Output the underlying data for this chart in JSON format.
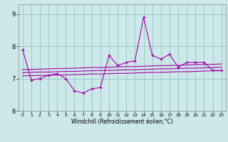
{
  "hours": [
    0,
    1,
    2,
    3,
    4,
    5,
    6,
    7,
    8,
    9,
    10,
    11,
    12,
    13,
    14,
    15,
    16,
    17,
    18,
    19,
    20,
    21,
    22,
    23
  ],
  "line_jagged": [
    7.9,
    6.95,
    7.0,
    7.1,
    7.15,
    7.0,
    6.62,
    6.55,
    6.68,
    6.72,
    7.72,
    7.4,
    7.5,
    7.55,
    8.9,
    7.72,
    7.6,
    7.75,
    7.35,
    7.5,
    7.5,
    7.5,
    7.25,
    7.25
  ],
  "line_smooth1": [
    7.28,
    7.28,
    7.29,
    7.3,
    7.31,
    7.31,
    7.32,
    7.33,
    7.34,
    7.34,
    7.35,
    7.36,
    7.37,
    7.37,
    7.38,
    7.39,
    7.4,
    7.4,
    7.41,
    7.42,
    7.43,
    7.43,
    7.44,
    7.45
  ],
  "line_smooth2": [
    7.18,
    7.19,
    7.2,
    7.2,
    7.21,
    7.22,
    7.22,
    7.23,
    7.24,
    7.25,
    7.25,
    7.26,
    7.27,
    7.27,
    7.28,
    7.29,
    7.3,
    7.3,
    7.31,
    7.32,
    7.32,
    7.33,
    7.34,
    7.35
  ],
  "line_smooth3": [
    7.08,
    7.09,
    7.09,
    7.1,
    7.11,
    7.11,
    7.12,
    7.13,
    7.14,
    7.14,
    7.15,
    7.16,
    7.16,
    7.17,
    7.18,
    7.19,
    7.19,
    7.2,
    7.21,
    7.21,
    7.22,
    7.23,
    7.24,
    7.24
  ],
  "line_color": "#aa00aa",
  "bg_color": "#cce8e8",
  "grid_color": "#99cccc",
  "xlabel": "Windchill (Refroidissement éolien,°C)",
  "ylim": [
    6.0,
    9.3
  ],
  "xlim": [
    -0.5,
    23.5
  ],
  "yticks": [
    6,
    7,
    8,
    9
  ],
  "xticks": [
    0,
    1,
    2,
    3,
    4,
    5,
    6,
    7,
    8,
    9,
    10,
    11,
    12,
    13,
    14,
    15,
    16,
    17,
    18,
    19,
    20,
    21,
    22,
    23
  ]
}
